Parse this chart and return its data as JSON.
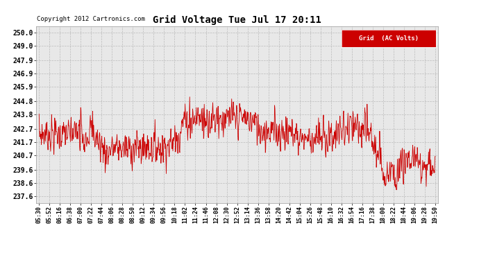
{
  "title": "Grid Voltage Tue Jul 17 20:11",
  "copyright": "Copyright 2012 Cartronics.com",
  "legend_label": "Grid  (AC Volts)",
  "legend_bg": "#cc0000",
  "legend_fg": "#ffffff",
  "line_color": "#cc0000",
  "bg_color": "#ffffff",
  "plot_bg_color": "#e8e8e8",
  "grid_color": "#bbbbbb",
  "yticks": [
    237.6,
    238.6,
    239.6,
    240.7,
    241.7,
    242.7,
    243.8,
    244.8,
    245.9,
    246.9,
    247.9,
    249.0,
    250.0
  ],
  "ylim": [
    237.1,
    250.5
  ],
  "xtick_labels": [
    "05:30",
    "05:52",
    "06:16",
    "06:38",
    "07:00",
    "07:22",
    "07:44",
    "08:06",
    "08:28",
    "08:50",
    "09:12",
    "09:34",
    "09:56",
    "10:18",
    "11:02",
    "11:24",
    "11:46",
    "12:08",
    "12:30",
    "12:52",
    "13:14",
    "13:36",
    "13:58",
    "14:20",
    "14:42",
    "15:04",
    "15:26",
    "15:48",
    "16:10",
    "16:32",
    "16:54",
    "17:16",
    "17:38",
    "18:00",
    "18:22",
    "18:44",
    "19:06",
    "19:28",
    "19:50"
  ],
  "seed": 7,
  "n_points": 1200
}
